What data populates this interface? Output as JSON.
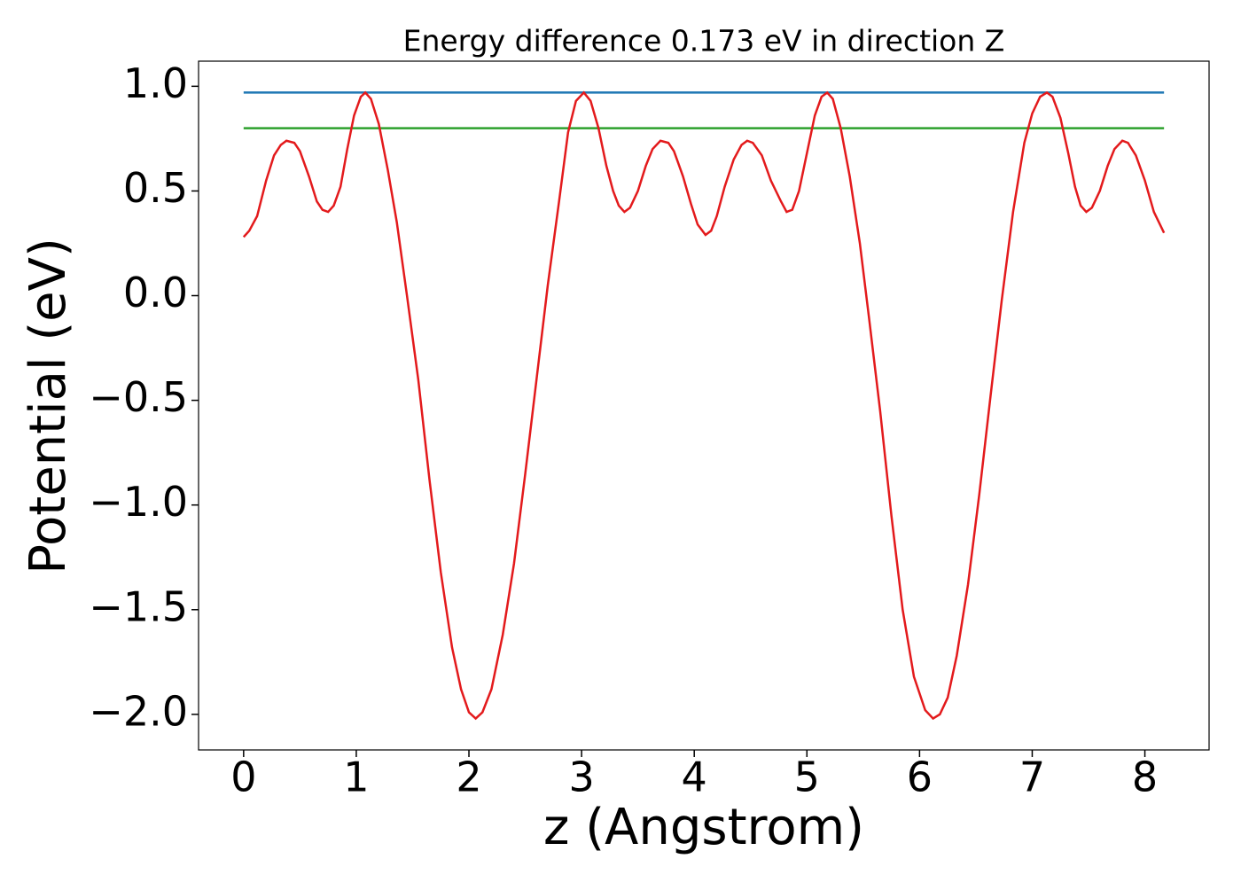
{
  "chart_data": {
    "type": "line",
    "title": "Energy difference 0.173 eV in direction Z",
    "xlabel": "z (Angstrom)",
    "ylabel": "Potential (eV)",
    "xlim": [
      -0.4,
      8.57
    ],
    "ylim": [
      -2.17,
      1.12
    ],
    "xticks": [
      0,
      1,
      2,
      3,
      4,
      5,
      6,
      7,
      8
    ],
    "yticks": [
      {
        "value": -2,
        "label": "−2.0"
      },
      {
        "value": -1.5,
        "label": "−1.5"
      },
      {
        "value": -1,
        "label": "−1.0"
      },
      {
        "value": -0.5,
        "label": "−0.5"
      },
      {
        "value": 0,
        "label": "0.0"
      },
      0.5,
      {
        "value": 1,
        "label": "1.0"
      }
    ],
    "series": [
      {
        "color": "#1f77b4",
        "x": [
          0,
          8.17
        ],
        "values": [
          0.97,
          0.97
        ]
      },
      {
        "color": "#2ca02c",
        "x": [
          0,
          8.17
        ],
        "values": [
          0.8,
          0.8
        ]
      },
      {
        "color": "#e31a1c",
        "x": [
          0,
          0.05,
          0.12,
          0.2,
          0.27,
          0.33,
          0.38,
          0.45,
          0.5,
          0.58,
          0.65,
          0.7,
          0.75,
          0.8,
          0.86,
          0.92,
          0.98,
          1.04,
          1.08,
          1.13,
          1.2,
          1.28,
          1.36,
          1.45,
          1.55,
          1.65,
          1.75,
          1.85,
          1.93,
          2.0,
          2.06,
          2.12,
          2.2,
          2.3,
          2.4,
          2.5,
          2.6,
          2.7,
          2.8,
          2.88,
          2.95,
          3.02,
          3.08,
          3.15,
          3.22,
          3.28,
          3.33,
          3.38,
          3.43,
          3.5,
          3.57,
          3.63,
          3.7,
          3.77,
          3.82,
          3.9,
          3.97,
          4.03,
          4.1,
          4.15,
          4.2,
          4.27,
          4.35,
          4.42,
          4.47,
          4.52,
          4.6,
          4.68,
          4.77,
          4.82,
          4.87,
          4.93,
          5.0,
          5.07,
          5.13,
          5.18,
          5.23,
          5.3,
          5.38,
          5.47,
          5.55,
          5.65,
          5.75,
          5.85,
          5.95,
          6.05,
          6.12,
          6.18,
          6.25,
          6.33,
          6.43,
          6.53,
          6.63,
          6.73,
          6.83,
          6.93,
          7.0,
          7.07,
          7.13,
          7.18,
          7.25,
          7.32,
          7.38,
          7.43,
          7.48,
          7.53,
          7.6,
          7.67,
          7.73,
          7.8,
          7.85,
          7.92,
          8.0,
          8.08,
          8.17
        ],
        "values": [
          0.28,
          0.31,
          0.38,
          0.55,
          0.67,
          0.72,
          0.74,
          0.73,
          0.69,
          0.57,
          0.45,
          0.41,
          0.4,
          0.43,
          0.52,
          0.7,
          0.86,
          0.95,
          0.97,
          0.94,
          0.82,
          0.6,
          0.35,
          0.0,
          -0.4,
          -0.88,
          -1.32,
          -1.68,
          -1.88,
          -1.99,
          -2.02,
          -1.99,
          -1.88,
          -1.62,
          -1.28,
          -0.85,
          -0.4,
          0.05,
          0.45,
          0.78,
          0.93,
          0.97,
          0.93,
          0.8,
          0.62,
          0.5,
          0.43,
          0.4,
          0.42,
          0.5,
          0.62,
          0.7,
          0.74,
          0.73,
          0.69,
          0.57,
          0.44,
          0.34,
          0.29,
          0.31,
          0.38,
          0.52,
          0.65,
          0.72,
          0.74,
          0.73,
          0.67,
          0.55,
          0.45,
          0.4,
          0.41,
          0.5,
          0.68,
          0.86,
          0.95,
          0.97,
          0.94,
          0.8,
          0.57,
          0.25,
          -0.1,
          -0.55,
          -1.05,
          -1.5,
          -1.82,
          -1.98,
          -2.02,
          -2.0,
          -1.92,
          -1.72,
          -1.38,
          -0.95,
          -0.48,
          -0.02,
          0.4,
          0.73,
          0.87,
          0.95,
          0.97,
          0.95,
          0.85,
          0.68,
          0.52,
          0.43,
          0.4,
          0.42,
          0.5,
          0.62,
          0.7,
          0.74,
          0.73,
          0.67,
          0.55,
          0.4,
          0.3
        ]
      }
    ]
  }
}
